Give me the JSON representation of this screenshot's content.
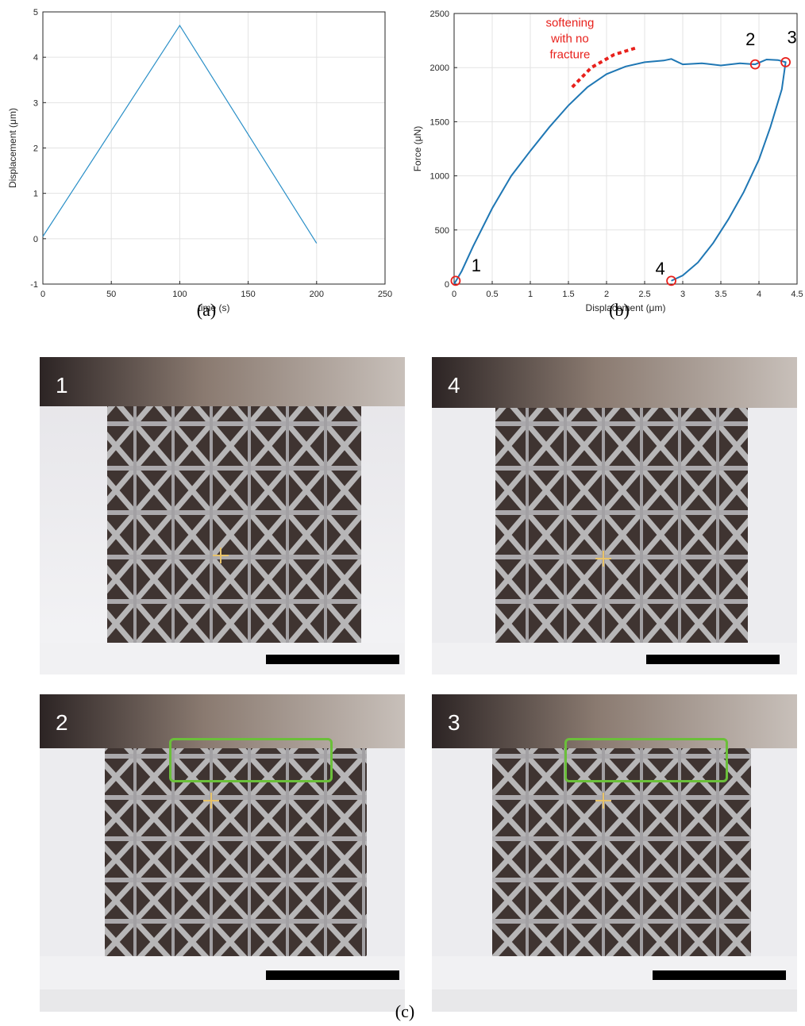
{
  "chart_data": [
    {
      "type": "line",
      "panel": "(a)",
      "xlabel": "time (s)",
      "ylabel": "Displacement (μm)",
      "xlim": [
        0,
        250
      ],
      "ylim": [
        -1,
        5
      ],
      "xticks": [
        0,
        50,
        100,
        150,
        200,
        250
      ],
      "yticks": [
        -1,
        0,
        1,
        2,
        3,
        4,
        5
      ],
      "grid": true,
      "series": [
        {
          "x": [
            0,
            100,
            200
          ],
          "y": [
            0.05,
            4.7,
            -0.1
          ],
          "color": "#2a8fc7"
        }
      ]
    },
    {
      "type": "line",
      "panel": "(b)",
      "xlabel": "Displacement (μm)",
      "ylabel": "Force (μN)",
      "xlim": [
        0,
        4.5
      ],
      "ylim": [
        0,
        2500
      ],
      "xticks": [
        0,
        0.5,
        1,
        1.5,
        2,
        2.5,
        3,
        3.5,
        4,
        4.5
      ],
      "yticks": [
        0,
        500,
        1000,
        1500,
        2000,
        2500
      ],
      "grid": true,
      "series": [
        {
          "color": "#1f77b4",
          "x": [
            0.0,
            0.1,
            0.25,
            0.5,
            0.75,
            1.0,
            1.25,
            1.5,
            1.75,
            2.0,
            2.25,
            2.5,
            2.75,
            2.85,
            3.0,
            3.25,
            3.5,
            3.75,
            3.95,
            4.1,
            4.25,
            4.35,
            4.3,
            4.15,
            4.0,
            3.8,
            3.6,
            3.4,
            3.2,
            3.0,
            2.85
          ],
          "y": [
            0,
            120,
            350,
            700,
            1000,
            1230,
            1450,
            1650,
            1820,
            1940,
            2010,
            2050,
            2065,
            2080,
            2030,
            2040,
            2020,
            2040,
            2030,
            2075,
            2070,
            2050,
            1800,
            1450,
            1150,
            850,
            600,
            380,
            200,
            80,
            30
          ]
        }
      ],
      "points": [
        {
          "label": "1",
          "x": 0.02,
          "y": 30
        },
        {
          "label": "2",
          "x": 3.95,
          "y": 2030
        },
        {
          "label": "3",
          "x": 4.35,
          "y": 2050
        },
        {
          "label": "4",
          "x": 2.85,
          "y": 30
        }
      ],
      "annotation": {
        "lines": [
          "softening",
          "with no",
          "fracture"
        ],
        "color": "#e8211c",
        "dashed_curve": {
          "x": [
            1.55,
            1.8,
            2.1,
            2.4
          ],
          "y": [
            1820,
            2000,
            2120,
            2185
          ]
        }
      }
    }
  ],
  "captions": {
    "a": "(a)",
    "b": "(b)",
    "c": "(c)"
  },
  "photos": [
    {
      "label": "1",
      "roi": false
    },
    {
      "label": "4",
      "roi": false
    },
    {
      "label": "2",
      "roi": true
    },
    {
      "label": "3",
      "roi": true
    }
  ]
}
